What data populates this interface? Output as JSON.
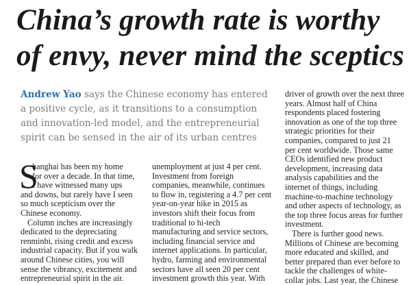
{
  "headline": {
    "line1": "China’s growth rate is worthy",
    "line2": "of envy, never mind the sceptics"
  },
  "standfirst": {
    "author": "Andrew Yao",
    "line1_rest": " says the Chinese economy has entered",
    "line2": "a positive cycle, as it transitions to a consumption",
    "line3": "and innovation-led model, and the entrepreneurial",
    "line4": "spirit can be sensed in the air of its urban centres"
  },
  "body": {
    "dropcap": "S",
    "col1": [
      "hanghai has been my home",
      "for over a decade. In that time,",
      "I have witnessed many ups",
      "and downs, but rarely have I seen",
      "so much scepticism over the",
      "Chinese economy.",
      "Column inches are increasingly",
      "dedicated to the depreciating",
      "renminbi, rising credit and excess",
      "industrial capacity. But if you walk",
      "around Chinese cities, you will",
      "sense the vibrancy, excitement and",
      "entrepreneurial spirit in the air."
    ],
    "col2": [
      "unemployment at just 4 per cent.",
      "Investment from foreign",
      "companies, meanwhile, continues",
      "to flow in, registering a 4.7 per cent",
      "year-on-year hike in 2015 as",
      "investors shift their focus from",
      "traditional to hi-tech",
      "manufacturing and service sectors,",
      "including financial service and",
      "internet applications. In particular,",
      "hydro, farming and environmental",
      "sectors have all seen 20 per cent",
      "investment growth this year. With"
    ],
    "col3": [
      "driver of growth over the next three",
      "years. Almost half of China",
      "respondents placed fostering",
      "innovation as one of the top three",
      "strategic priorities for their",
      "companies, compared to just 21",
      "per cent worldwide. Those same",
      "CEOs identified new product",
      "development, increasing data",
      "analysis capabilities and the",
      "internet of things, including",
      "machine-to-machine technology",
      "and other aspects of technology, as",
      "the top three focus areas for further",
      "investment.",
      "There is further good news.",
      "Millions of Chinese are becoming",
      "more educated and skilled, and",
      "better prepared than ever before to",
      "tackle the challenges of white-",
      "collar jobs. Last year, the Chinese"
    ]
  }
}
